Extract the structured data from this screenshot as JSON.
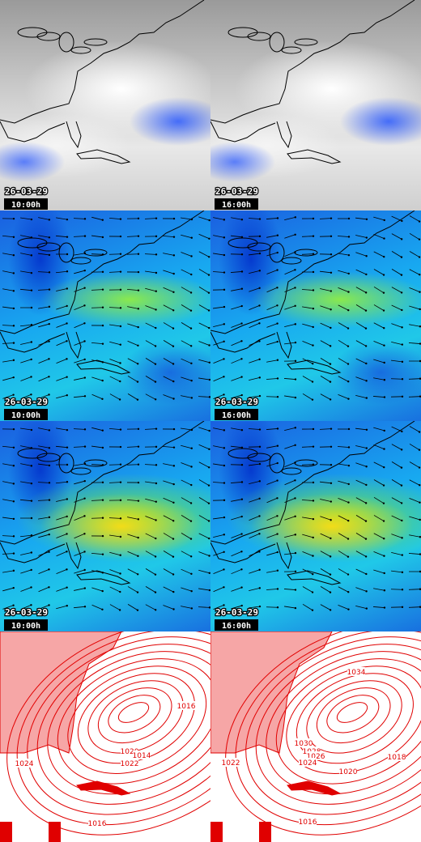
{
  "rows": [
    {
      "panels": [
        {
          "date": "26-03-29",
          "time": "10:00h"
        },
        {
          "date": "26-03-29",
          "time": "16:00h"
        }
      ]
    },
    {
      "panels": [
        {
          "date": "26-03-29",
          "time": "10:00h"
        },
        {
          "date": "26-03-29",
          "time": "16:00h"
        }
      ]
    },
    {
      "panels": [
        {
          "date": "26-03-29",
          "time": "10:00h"
        },
        {
          "date": "26-03-29",
          "time": "16:00h"
        }
      ]
    },
    {
      "panels": [
        {
          "labels": [
            "1016",
            "1020",
            "1014",
            "1024",
            "1022",
            "1016"
          ]
        },
        {
          "labels": [
            "1034",
            "1030",
            "1028",
            "1026",
            "1024",
            "1022",
            "1020",
            "1018",
            "1016"
          ]
        }
      ]
    }
  ]
}
